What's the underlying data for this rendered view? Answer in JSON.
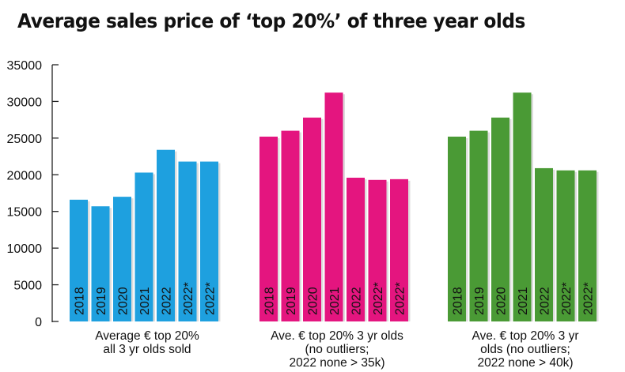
{
  "chart_data": {
    "type": "bar",
    "title": "Average sales price of ‘top 20%’ of three year olds",
    "xlabel": "",
    "ylabel": "",
    "ylim": [
      0,
      35000
    ],
    "yticks": [
      "0",
      "5000",
      "10000",
      "15000",
      "20000",
      "25000",
      "30000",
      "35000"
    ],
    "grid": false,
    "groups": [
      {
        "label_lines": [
          "Average € top 20%",
          "all 3 yr olds sold"
        ],
        "color": "#1ea0df",
        "categories": [
          "2018",
          "2019",
          "2020",
          "2021",
          "2022",
          "2022*",
          "2022*"
        ],
        "values": [
          16600,
          15700,
          17000,
          20300,
          23400,
          21800,
          21800
        ]
      },
      {
        "label_lines": [
          "Ave. € top 20% 3 yr olds",
          "(no outliers;",
          "2022 none > 35k)"
        ],
        "color": "#e4157f",
        "categories": [
          "2018",
          "2019",
          "2020",
          "2021",
          "2022",
          "2022*",
          "2022*"
        ],
        "values": [
          25200,
          26000,
          27800,
          31200,
          19600,
          19300,
          19400
        ]
      },
      {
        "label_lines": [
          "Ave. € top 20% 3 yr",
          "olds (no outliers;",
          "2022 none > 40k)"
        ],
        "color": "#4a9a35",
        "categories": [
          "2018",
          "2019",
          "2020",
          "2021",
          "2022",
          "2022*",
          "2022*"
        ],
        "values": [
          25200,
          26000,
          27800,
          31200,
          20900,
          20600,
          20600
        ]
      }
    ]
  }
}
